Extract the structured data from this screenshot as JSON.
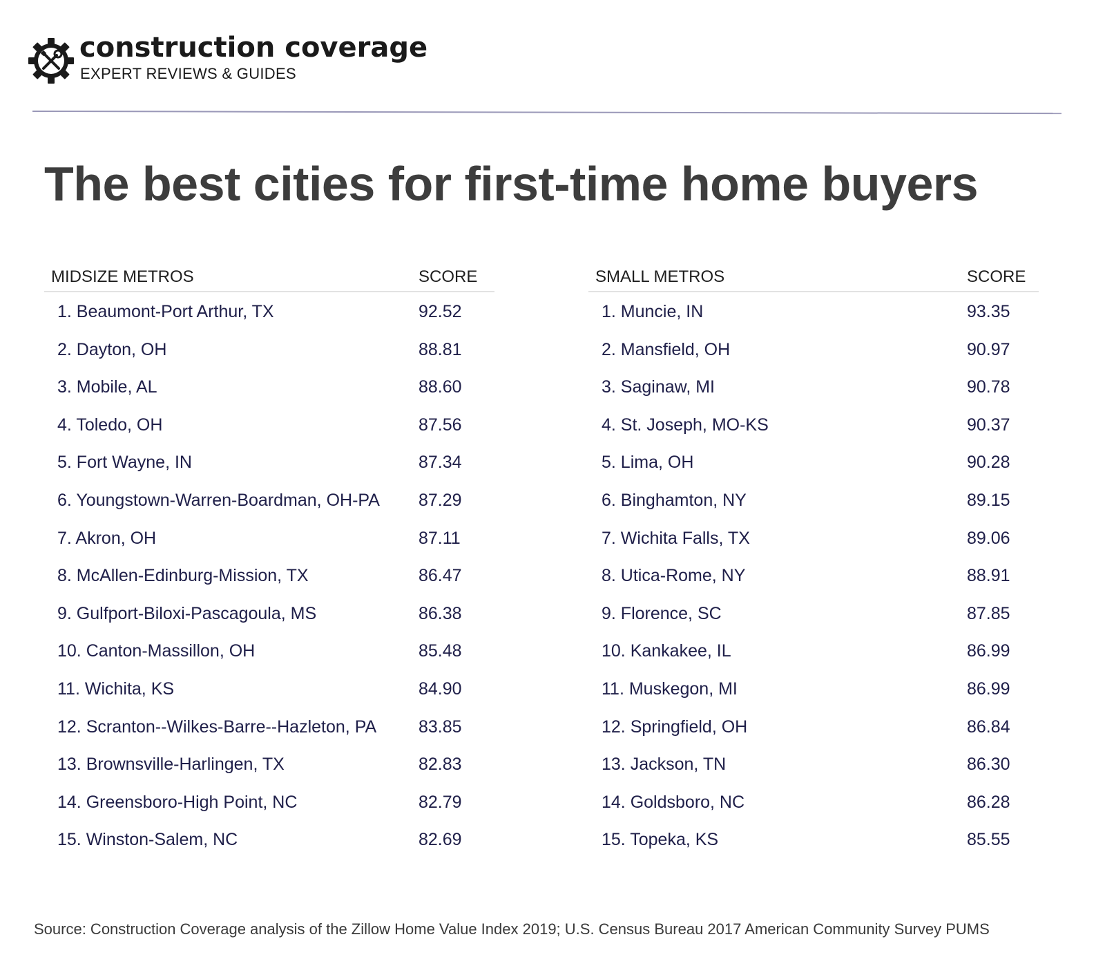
{
  "brand": {
    "name": "construction coverage",
    "tagline": "EXPERT REVIEWS & GUIDES",
    "logo_icon": "gear-wrench-screwdriver-icon"
  },
  "title": "The best cities for first-time home buyers",
  "tables": {
    "midsize": {
      "header_name": "MIDSIZE METROS",
      "header_score": "SCORE",
      "rows": [
        {
          "name": "1. Beaumont-Port Arthur, TX",
          "score": "92.52"
        },
        {
          "name": "2. Dayton, OH",
          "score": "88.81"
        },
        {
          "name": "3. Mobile, AL",
          "score": "88.60"
        },
        {
          "name": "4. Toledo, OH",
          "score": "87.56"
        },
        {
          "name": "5. Fort Wayne, IN",
          "score": "87.34"
        },
        {
          "name": "6. Youngstown-Warren-Boardman, OH-PA",
          "score": "87.29"
        },
        {
          "name": "7. Akron, OH",
          "score": "87.11"
        },
        {
          "name": "8. McAllen-Edinburg-Mission, TX",
          "score": "86.47"
        },
        {
          "name": "9. Gulfport-Biloxi-Pascagoula, MS",
          "score": "86.38"
        },
        {
          "name": "10. Canton-Massillon, OH",
          "score": "85.48"
        },
        {
          "name": "11. Wichita, KS",
          "score": "84.90"
        },
        {
          "name": "12. Scranton--Wilkes-Barre--Hazleton, PA",
          "score": "83.85"
        },
        {
          "name": "13. Brownsville-Harlingen, TX",
          "score": "82.83"
        },
        {
          "name": "14. Greensboro-High Point, NC",
          "score": "82.79"
        },
        {
          "name": "15. Winston-Salem, NC",
          "score": "82.69"
        }
      ]
    },
    "small": {
      "header_name": "SMALL METROS",
      "header_score": "SCORE",
      "rows": [
        {
          "name": "1. Muncie, IN",
          "score": "93.35"
        },
        {
          "name": "2. Mansfield, OH",
          "score": "90.97"
        },
        {
          "name": "3. Saginaw, MI",
          "score": "90.78"
        },
        {
          "name": "4. St. Joseph, MO-KS",
          "score": "90.37"
        },
        {
          "name": "5. Lima, OH",
          "score": "90.28"
        },
        {
          "name": "6. Binghamton, NY",
          "score": "89.15"
        },
        {
          "name": "7. Wichita Falls, TX",
          "score": "89.06"
        },
        {
          "name": "8. Utica-Rome, NY",
          "score": "88.91"
        },
        {
          "name": "9. Florence, SC",
          "score": "87.85"
        },
        {
          "name": "10. Kankakee, IL",
          "score": "86.99"
        },
        {
          "name": "11. Muskegon, MI",
          "score": "86.99"
        },
        {
          "name": "12. Springfield, OH",
          "score": "86.84"
        },
        {
          "name": "13. Jackson, TN",
          "score": "86.30"
        },
        {
          "name": "14. Goldsboro, NC",
          "score": "86.28"
        },
        {
          "name": "15. Topeka, KS",
          "score": "85.55"
        }
      ]
    }
  },
  "source": "Source: Construction Coverage analysis of the Zillow Home Value Index 2019; U.S. Census Bureau 2017 American Community Survey PUMS",
  "colors": {
    "title": "#3d3d3d",
    "row_text": "#20204a",
    "rule": "#9a98b8"
  }
}
